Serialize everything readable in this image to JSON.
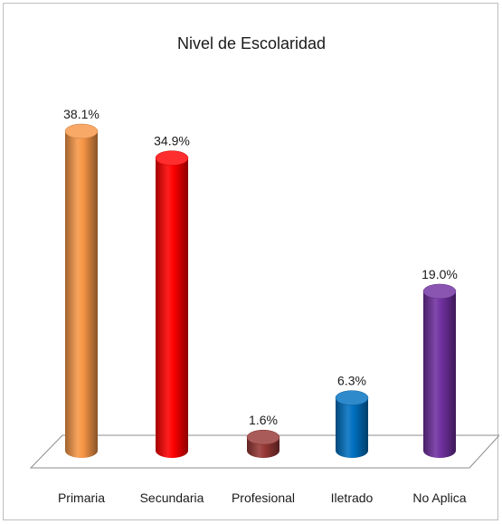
{
  "chart_data": {
    "type": "bar",
    "title": "Nivel de Escolaridad",
    "categories": [
      "Primaria",
      "Secundaria",
      "Profesional",
      "Iletrado",
      "No Aplica"
    ],
    "values": [
      38.1,
      34.9,
      1.6,
      6.3,
      19.0
    ],
    "value_labels": [
      "38.1%",
      "34.9%",
      "1.6%",
      "6.3%",
      "19.0%"
    ],
    "colors": [
      "#F79646",
      "#FF0000",
      "#953735",
      "#0070C0",
      "#7030A0"
    ],
    "style": "3d-cylinder",
    "ylim": [
      0,
      38.1
    ],
    "grid": false,
    "legend": "none"
  }
}
